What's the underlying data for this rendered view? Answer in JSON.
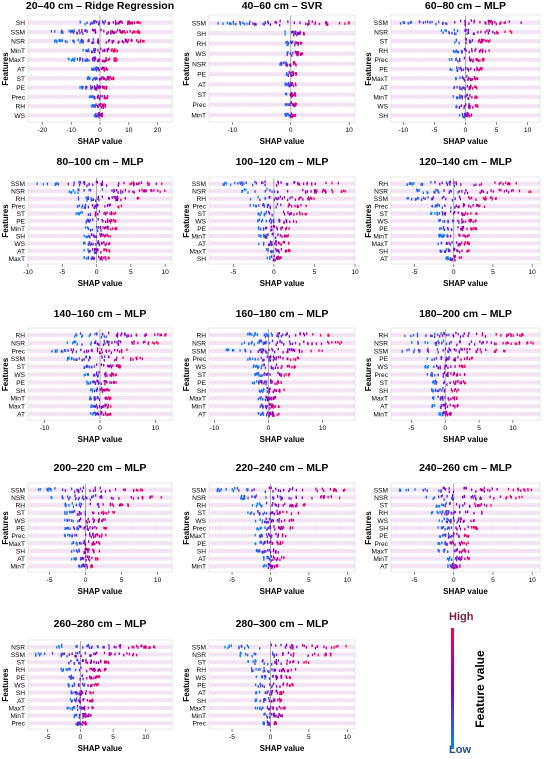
{
  "chart_data": [
    {
      "type": "scatter",
      "title": "20–40 cm – Ridge Regression",
      "xlabel": "SHAP value",
      "ylabel": "Features",
      "features": [
        "SH",
        "SSM",
        "NSR",
        "MinT",
        "MaxT",
        "AT",
        "ST",
        "PE",
        "Prec",
        "RH",
        "WS"
      ],
      "xlim": [
        -25,
        25
      ],
      "xticks": [
        -20,
        -10,
        0,
        10,
        20
      ],
      "spread": [
        [
          -7,
          14
        ],
        [
          -17,
          14
        ],
        [
          -16,
          16
        ],
        [
          -6,
          6
        ],
        [
          -11,
          7
        ],
        [
          -3,
          3
        ],
        [
          -5,
          5
        ],
        [
          -7,
          3
        ],
        [
          -4,
          3
        ],
        [
          -3,
          2
        ],
        [
          -2,
          1
        ]
      ]
    },
    {
      "type": "scatter",
      "title": "40–60 cm – SVR",
      "xlabel": "SHAP value",
      "ylabel": "Features",
      "features": [
        "SSM",
        "SH",
        "RH",
        "WS",
        "NSR",
        "PE",
        "AT",
        "ST",
        "Prec",
        "MinT"
      ],
      "xlim": [
        -14,
        11
      ],
      "xticks": [
        -10,
        0,
        10
      ],
      "spread": [
        [
          -13,
          10
        ],
        [
          -1,
          3
        ],
        [
          -1,
          2
        ],
        [
          -1,
          2
        ],
        [
          -2,
          1
        ],
        [
          -1,
          1
        ],
        [
          -1,
          1
        ],
        [
          -1,
          1
        ],
        [
          -1,
          1
        ],
        [
          -1,
          1
        ]
      ]
    },
    {
      "type": "scatter",
      "title": "60–80 cm – MLP",
      "xlabel": "SHAP value",
      "ylabel": "Features",
      "features": [
        "SSM",
        "NSR",
        "ST",
        "RH",
        "Prec",
        "PE",
        "MaxT",
        "AT",
        "MinT",
        "WS",
        "SH"
      ],
      "xlim": [
        -12,
        12
      ],
      "xticks": [
        -10,
        -5,
        0,
        5,
        10
      ],
      "spread": [
        [
          -11,
          9
        ],
        [
          -4,
          8
        ],
        [
          -2,
          4
        ],
        [
          -2,
          4
        ],
        [
          -3,
          3
        ],
        [
          -3,
          3
        ],
        [
          -2,
          2
        ],
        [
          -2,
          2
        ],
        [
          -2,
          2
        ],
        [
          -2,
          2
        ],
        [
          -1,
          1
        ]
      ]
    },
    {
      "type": "scatter",
      "title": "80–100 cm – MLP",
      "xlabel": "SHAP value",
      "ylabel": "Features",
      "features": [
        "SSM",
        "NSR",
        "RH",
        "Prec",
        "ST",
        "PE",
        "MinT",
        "SH",
        "WS",
        "AT",
        "MaxT"
      ],
      "xlim": [
        -10,
        11
      ],
      "xticks": [
        -10,
        -5,
        0,
        5,
        10
      ],
      "spread": [
        [
          -9,
          10
        ],
        [
          -4,
          10
        ],
        [
          -3,
          7
        ],
        [
          -3,
          4
        ],
        [
          -3,
          3
        ],
        [
          -2,
          3
        ],
        [
          -2,
          3
        ],
        [
          -2,
          2
        ],
        [
          -2,
          2
        ],
        [
          -2,
          2
        ],
        [
          -2,
          2
        ]
      ]
    },
    {
      "type": "scatter",
      "title": "100–120 cm – MLP",
      "xlabel": "SHAP value",
      "ylabel": "Features",
      "features": [
        "SSM",
        "NSR",
        "RH",
        "Prec",
        "ST",
        "WS",
        "PE",
        "MinT",
        "AT",
        "MaxT",
        "SH"
      ],
      "xlim": [
        -8,
        10
      ],
      "xticks": [
        -5,
        0,
        5,
        10
      ],
      "spread": [
        [
          -7,
          8
        ],
        [
          -4,
          9
        ],
        [
          -3,
          5
        ],
        [
          -3,
          4
        ],
        [
          -2,
          4
        ],
        [
          -2,
          3
        ],
        [
          -2,
          2
        ],
        [
          -2,
          2
        ],
        [
          -2,
          2
        ],
        [
          -1,
          2
        ],
        [
          -1,
          1
        ]
      ]
    },
    {
      "type": "scatter",
      "title": "120–140 cm – MLP",
      "xlabel": "SHAP value",
      "ylabel": "Features",
      "features": [
        "RH",
        "NSR",
        "SSM",
        "Prec",
        "ST",
        "WS",
        "PE",
        "MinT",
        "MaxT",
        "SH",
        "AT"
      ],
      "xlim": [
        -8,
        11
      ],
      "xticks": [
        -5,
        0,
        5,
        10
      ],
      "spread": [
        [
          -6,
          8
        ],
        [
          -5,
          10
        ],
        [
          -6,
          6
        ],
        [
          -3,
          4
        ],
        [
          -3,
          3
        ],
        [
          -2,
          3
        ],
        [
          -2,
          3
        ],
        [
          -2,
          2
        ],
        [
          -2,
          2
        ],
        [
          -2,
          2
        ],
        [
          -1,
          1
        ]
      ]
    },
    {
      "type": "scatter",
      "title": "140–160 cm – MLP",
      "xlabel": "SHAP value",
      "ylabel": "Features",
      "features": [
        "RH",
        "NSR",
        "Prec",
        "SSM",
        "ST",
        "WS",
        "PE",
        "SH",
        "MinT",
        "MaxT",
        "AT"
      ],
      "xlim": [
        -13,
        13
      ],
      "xticks": [
        -10,
        0,
        10
      ],
      "spread": [
        [
          -5,
          12
        ],
        [
          -6,
          11
        ],
        [
          -9,
          5
        ],
        [
          -6,
          8
        ],
        [
          -4,
          4
        ],
        [
          -3,
          3
        ],
        [
          -3,
          3
        ],
        [
          -2,
          2
        ],
        [
          -2,
          2
        ],
        [
          -2,
          2
        ],
        [
          -2,
          2
        ]
      ]
    },
    {
      "type": "scatter",
      "title": "160–180 cm – MLP",
      "xlabel": "SHAP value",
      "ylabel": "Features",
      "features": [
        "RH",
        "NSR",
        "SSM",
        "Prec",
        "WS",
        "ST",
        "PE",
        "SH",
        "MaxT",
        "MinT",
        "AT"
      ],
      "xlim": [
        -11,
        16
      ],
      "xticks": [
        -10,
        0,
        10
      ],
      "spread": [
        [
          -4,
          12
        ],
        [
          -5,
          14
        ],
        [
          -8,
          10
        ],
        [
          -4,
          6
        ],
        [
          -3,
          5
        ],
        [
          -3,
          4
        ],
        [
          -3,
          3
        ],
        [
          -2,
          3
        ],
        [
          -2,
          2
        ],
        [
          -2,
          2
        ],
        [
          -2,
          2
        ]
      ]
    },
    {
      "type": "scatter",
      "title": "180–200 cm – MLP",
      "xlabel": "SHAP value",
      "ylabel": "Features",
      "features": [
        "RH",
        "NSR",
        "SSM",
        "PE",
        "WS",
        "Prec",
        "ST",
        "SH",
        "MaxT",
        "AT",
        "MinT"
      ],
      "xlim": [
        -8,
        14
      ],
      "xticks": [
        -5,
        0,
        5,
        10
      ],
      "spread": [
        [
          -6,
          12
        ],
        [
          -5,
          13
        ],
        [
          -7,
          9
        ],
        [
          -3,
          4
        ],
        [
          -3,
          3
        ],
        [
          -3,
          3
        ],
        [
          -2,
          3
        ],
        [
          -2,
          2
        ],
        [
          -2,
          2
        ],
        [
          -2,
          2
        ],
        [
          -1,
          1
        ]
      ]
    },
    {
      "type": "scatter",
      "title": "200–220 cm – MLP",
      "xlabel": "SHAP value",
      "ylabel": "Features",
      "features": [
        "SSM",
        "NSR",
        "RH",
        "ST",
        "WS",
        "PE",
        "Prec",
        "MaxT",
        "SH",
        "AT",
        "MinT"
      ],
      "xlim": [
        -8,
        12
      ],
      "xticks": [
        -5,
        0,
        5,
        10
      ],
      "spread": [
        [
          -7,
          8
        ],
        [
          -5,
          11
        ],
        [
          -3,
          6
        ],
        [
          -3,
          4
        ],
        [
          -3,
          3
        ],
        [
          -3,
          3
        ],
        [
          -3,
          3
        ],
        [
          -2,
          2
        ],
        [
          -2,
          2
        ],
        [
          -2,
          2
        ],
        [
          -1,
          1
        ]
      ]
    },
    {
      "type": "scatter",
      "title": "220–240 cm – MLP",
      "xlabel": "SHAP value",
      "ylabel": "Features",
      "features": [
        "SSM",
        "NSR",
        "RH",
        "ST",
        "WS",
        "Prec",
        "MaxT",
        "PE",
        "SH",
        "AT",
        "MinT"
      ],
      "xlim": [
        -8,
        11
      ],
      "xticks": [
        -5,
        0,
        5,
        10
      ],
      "spread": [
        [
          -7,
          10
        ],
        [
          -5,
          9
        ],
        [
          -3,
          5
        ],
        [
          -3,
          4
        ],
        [
          -2,
          3
        ],
        [
          -2,
          3
        ],
        [
          -2,
          2
        ],
        [
          -2,
          2
        ],
        [
          -2,
          2
        ],
        [
          -1,
          2
        ],
        [
          -1,
          1
        ]
      ]
    },
    {
      "type": "scatter",
      "title": "240–260 cm – MLP",
      "xlabel": "SHAP value",
      "ylabel": "Features",
      "features": [
        "SSM",
        "NSR",
        "ST",
        "RH",
        "WS",
        "SH",
        "PE",
        "Prec",
        "MaxT",
        "MinT",
        "AT"
      ],
      "xlim": [
        -8,
        11
      ],
      "xticks": [
        -5,
        0,
        5,
        10
      ],
      "spread": [
        [
          -7,
          10
        ],
        [
          -4,
          9
        ],
        [
          -3,
          5
        ],
        [
          -3,
          4
        ],
        [
          -2,
          3
        ],
        [
          -2,
          3
        ],
        [
          -2,
          2
        ],
        [
          -2,
          2
        ],
        [
          -2,
          2
        ],
        [
          -1,
          2
        ],
        [
          -1,
          1
        ]
      ]
    },
    {
      "type": "scatter",
      "title": "260–280 cm – MLP",
      "xlabel": "SHAP value",
      "ylabel": "Features",
      "features": [
        "NSR",
        "SSM",
        "ST",
        "RH",
        "PE",
        "WS",
        "SH",
        "AT",
        "MaxT",
        "MinT",
        "Prec"
      ],
      "xlim": [
        -8,
        14
      ],
      "xticks": [
        -5,
        0,
        5,
        10
      ],
      "spread": [
        [
          -4,
          12
        ],
        [
          -7,
          9
        ],
        [
          -3,
          5
        ],
        [
          -3,
          4
        ],
        [
          -2,
          3
        ],
        [
          -2,
          3
        ],
        [
          -2,
          2
        ],
        [
          -2,
          2
        ],
        [
          -2,
          2
        ],
        [
          -1,
          2
        ],
        [
          -1,
          1
        ]
      ]
    },
    {
      "type": "scatter",
      "title": "280–300 cm – MLP",
      "xlabel": "SHAP value",
      "ylabel": "Features",
      "features": [
        "SSM",
        "NSR",
        "ST",
        "RH",
        "WS",
        "PE",
        "AT",
        "SH",
        "MaxT",
        "MinT",
        "Prec"
      ],
      "xlim": [
        -8,
        11
      ],
      "xticks": [
        -5,
        0,
        5,
        10
      ],
      "spread": [
        [
          -6,
          10
        ],
        [
          -4,
          8
        ],
        [
          -3,
          5
        ],
        [
          -3,
          4
        ],
        [
          -2,
          3
        ],
        [
          -2,
          3
        ],
        [
          -2,
          2
        ],
        [
          -2,
          2
        ],
        [
          -2,
          2
        ],
        [
          -1,
          2
        ],
        [
          -1,
          1
        ]
      ]
    }
  ],
  "colorbar": {
    "high_label": "High",
    "low_label": "Low",
    "title": "Feature value",
    "high_color": "#ff0052",
    "low_color": "#008bfb"
  }
}
